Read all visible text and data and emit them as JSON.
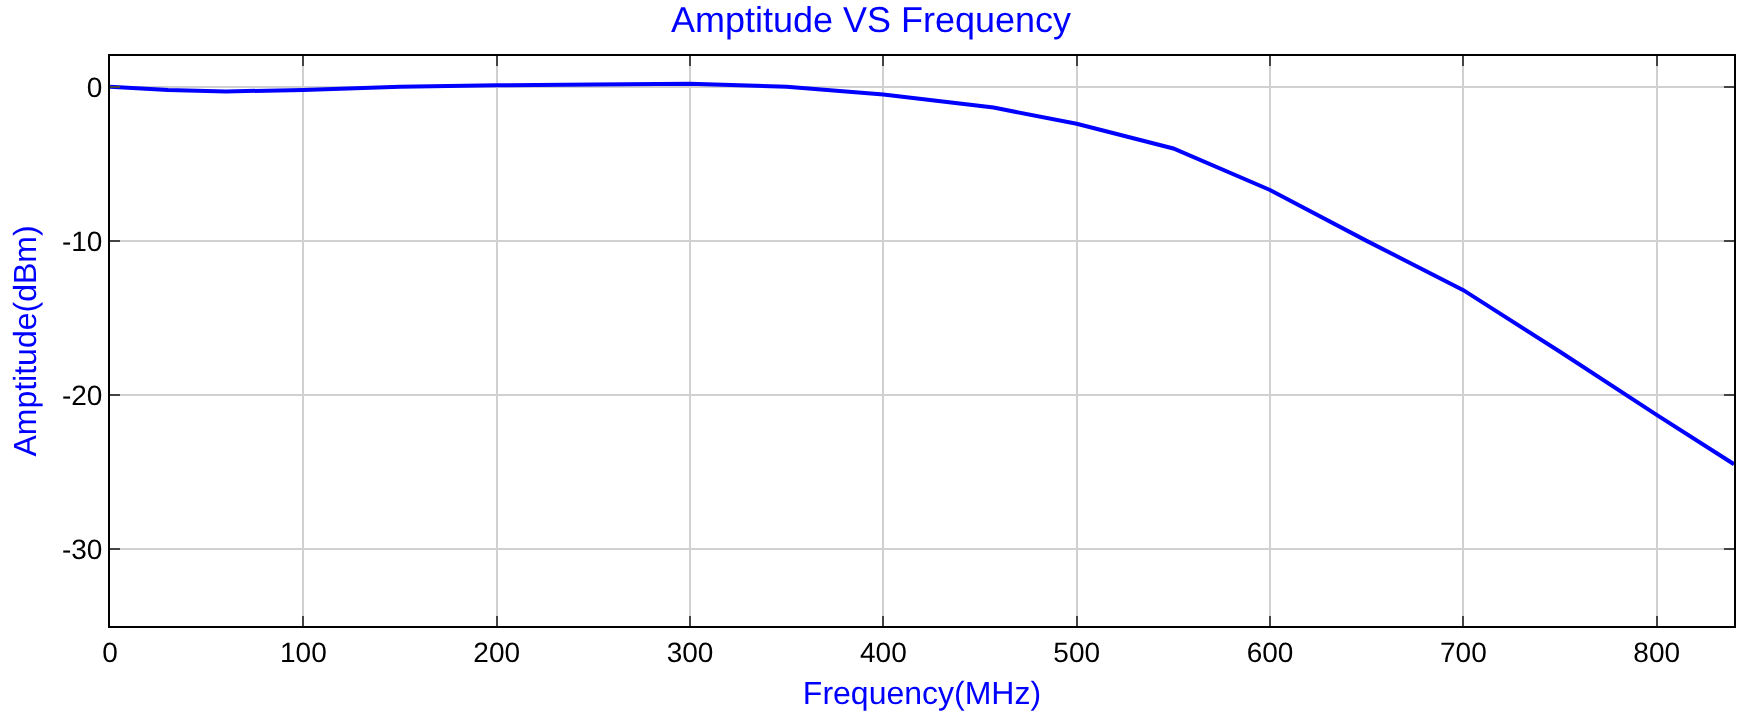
{
  "chart_data": {
    "type": "line",
    "title": "Amptitude VS Frequency",
    "xlabel": "Frequency(MHz)",
    "ylabel": "Amptitude(dBm)",
    "x": [
      0,
      30,
      60,
      100,
      150,
      200,
      250,
      300,
      350,
      400,
      457,
      500,
      550,
      600,
      650,
      700,
      750,
      800,
      840
    ],
    "series": [
      {
        "color": "#0000ff",
        "values": [
          0,
          -0.2,
          -0.3,
          -0.2,
          0,
          0.1,
          0.15,
          0.2,
          0,
          -0.5,
          -1.35,
          -2.4,
          -4.0,
          -6.7,
          -10.0,
          -13.2,
          -17.2,
          -21.3,
          -24.5
        ]
      }
    ],
    "xlim": [
      0,
      840
    ],
    "ylim": [
      -35,
      2
    ],
    "xticks": [
      0,
      100,
      200,
      300,
      400,
      500,
      600,
      700,
      800
    ],
    "yticks": [
      0,
      -10,
      -20,
      -30
    ],
    "grid": true,
    "legend": false,
    "marker": "none",
    "line_style": "solid"
  }
}
